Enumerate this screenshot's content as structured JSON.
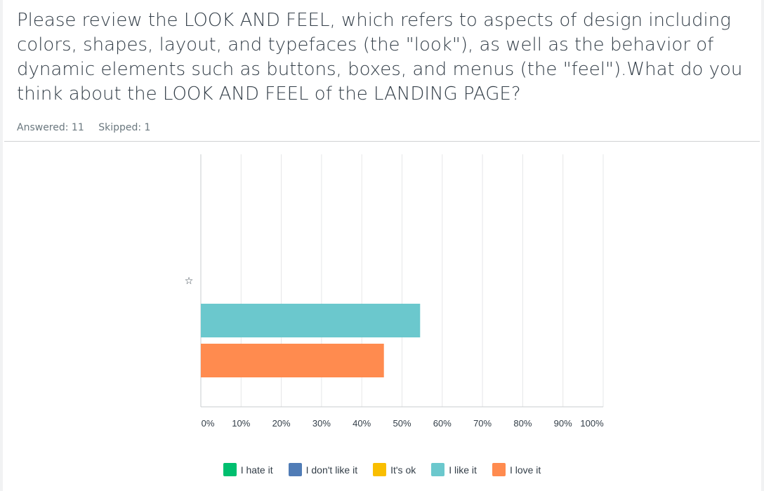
{
  "question": {
    "text": "Please review the LOOK AND FEEL, which refers to aspects of design including colors, shapes, layout, and typefaces (the \"look\"), as well as the behavior of dynamic elements such as buttons, boxes, and menus (the \"feel\").What do you think about the LOOK AND FEEL of the LANDING PAGE?"
  },
  "stats": {
    "answered": "Answered: 11",
    "skipped": "Skipped: 1"
  },
  "chart_data": {
    "type": "bar",
    "orientation": "horizontal",
    "categories": [
      "☆"
    ],
    "series": [
      {
        "name": "I hate it",
        "color": "#00bf6f",
        "values": [
          0
        ]
      },
      {
        "name": "I don't like it",
        "color": "#507cb6",
        "values": [
          0
        ]
      },
      {
        "name": "It's ok",
        "color": "#f9be00",
        "values": [
          0
        ]
      },
      {
        "name": "I like it",
        "color": "#6bc8cd",
        "values": [
          54.5
        ]
      },
      {
        "name": "I love it",
        "color": "#ff8b4f",
        "values": [
          45.5
        ]
      }
    ],
    "xlim": [
      0,
      100
    ],
    "x_ticks": [
      "0%",
      "10%",
      "20%",
      "30%",
      "40%",
      "50%",
      "60%",
      "70%",
      "80%",
      "90%",
      "100%"
    ],
    "grid": true,
    "legend_position": "bottom"
  }
}
